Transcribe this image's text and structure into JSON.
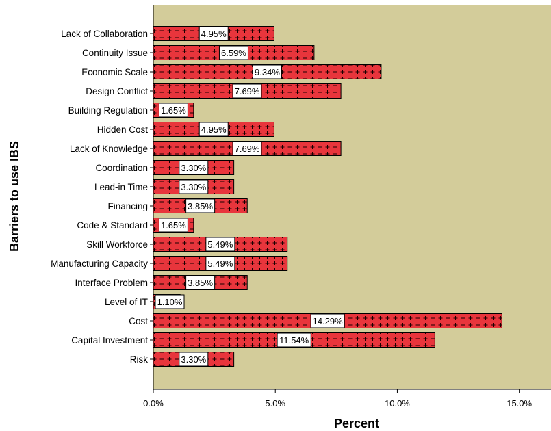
{
  "chart_data": {
    "type": "bar",
    "orientation": "horizontal",
    "xlabel": "Percent",
    "ylabel": "Barriers to use IBS",
    "xlim": [
      0,
      16.3
    ],
    "x_ticks": [
      0,
      5,
      10,
      15
    ],
    "x_tick_labels": [
      "0.0%",
      "5.0%",
      "10.0%",
      "15.0%"
    ],
    "categories": [
      "Lack of Collaboration",
      "Continuity Issue",
      "Economic Scale",
      "Design Conflict",
      "Building Regulation",
      "Hidden Cost",
      "Lack of Knowledge",
      "Coordination",
      "Lead-in Time",
      "Financing",
      "Code & Standard",
      "Skill Workforce",
      "Manufacturing Capacity",
      "Interface Problem",
      "Level of IT",
      "Cost",
      "Capital Investment",
      "Risk"
    ],
    "values": [
      4.95,
      6.59,
      9.34,
      7.69,
      1.65,
      4.95,
      7.69,
      3.3,
      3.3,
      3.85,
      1.65,
      5.49,
      5.49,
      3.85,
      1.1,
      14.29,
      11.54,
      3.3
    ],
    "data_labels": [
      "4.95%",
      "6.59%",
      "9.34%",
      "7.69%",
      "1.65%",
      "4.95%",
      "7.69%",
      "3.30%",
      "3.30%",
      "3.85%",
      "1.65%",
      "5.49%",
      "5.49%",
      "3.85%",
      "1.10%",
      "14.29%",
      "11.54%",
      "3.30%"
    ],
    "grid": false,
    "legend": "none",
    "colors": {
      "plot_background": "#d3cc9a",
      "bar_fill": "#e8353c",
      "bar_pattern": "#1a0000",
      "bar_outline": "#000000",
      "label_box": "#ffffff"
    }
  }
}
